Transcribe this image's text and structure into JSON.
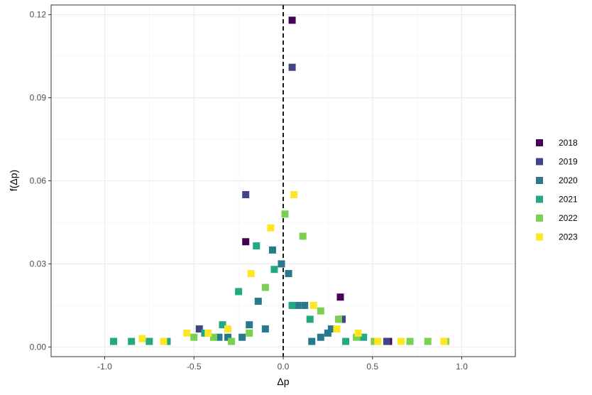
{
  "chart_data": {
    "type": "scatter",
    "xlabel": "Δp",
    "ylabel": "f(Δp)",
    "xlim": [
      -1.3,
      1.3
    ],
    "ylim": [
      -0.0035,
      0.1235
    ],
    "x_ticks": [
      -1.0,
      -0.5,
      0.0,
      0.5,
      1.0
    ],
    "x_tick_labels": [
      "-1.0",
      "-0.5",
      "0.0",
      "0.5",
      "1.0"
    ],
    "y_ticks": [
      0.0,
      0.03,
      0.06,
      0.09,
      0.12
    ],
    "y_tick_labels": [
      "0.00",
      "0.03",
      "0.06",
      "0.09",
      "0.12"
    ],
    "grid": true,
    "legend_position": "right",
    "reference_line": {
      "x": 0,
      "style": "dashed"
    },
    "series": [
      {
        "name": "2018",
        "color": "#440154",
        "points": [
          [
            0.05,
            0.118
          ],
          [
            -0.21,
            0.038
          ],
          [
            0.32,
            0.018
          ],
          [
            0.33,
            0.01
          ],
          [
            0.59,
            0.002
          ]
        ]
      },
      {
        "name": "2019",
        "color": "#414487",
        "points": [
          [
            0.05,
            0.101
          ],
          [
            -0.21,
            0.055
          ],
          [
            -0.47,
            0.0065
          ],
          [
            0.58,
            0.002
          ],
          [
            0.33,
            0.01
          ]
        ]
      },
      {
        "name": "2020",
        "color": "#2a788e",
        "points": [
          [
            -0.06,
            0.035
          ],
          [
            -0.01,
            0.03
          ],
          [
            0.03,
            0.0265
          ],
          [
            -0.14,
            0.0165
          ],
          [
            -0.19,
            0.008
          ],
          [
            -0.1,
            0.0065
          ],
          [
            -0.23,
            0.0035
          ],
          [
            -0.31,
            0.0035
          ],
          [
            -0.36,
            0.0035
          ],
          [
            0.08,
            0.015
          ],
          [
            0.12,
            0.015
          ],
          [
            0.27,
            0.0065
          ],
          [
            0.21,
            0.0035
          ],
          [
            0.16,
            0.002
          ],
          [
            0.25,
            0.005
          ]
        ]
      },
      {
        "name": "2021",
        "color": "#22a884",
        "points": [
          [
            -0.15,
            0.0365
          ],
          [
            -0.05,
            0.028
          ],
          [
            -0.25,
            0.02
          ],
          [
            -0.34,
            0.008
          ],
          [
            -0.44,
            0.005
          ],
          [
            -0.95,
            0.002
          ],
          [
            -0.85,
            0.002
          ],
          [
            -0.75,
            0.002
          ],
          [
            -0.65,
            0.002
          ],
          [
            0.05,
            0.015
          ],
          [
            0.15,
            0.01
          ],
          [
            0.35,
            0.002
          ],
          [
            0.45,
            0.0035
          ]
        ]
      },
      {
        "name": "2022",
        "color": "#7ad151",
        "points": [
          [
            0.01,
            0.048
          ],
          [
            0.11,
            0.04
          ],
          [
            -0.1,
            0.0215
          ],
          [
            0.21,
            0.013
          ],
          [
            0.31,
            0.01
          ],
          [
            -0.19,
            0.005
          ],
          [
            -0.39,
            0.0035
          ],
          [
            -0.5,
            0.0035
          ],
          [
            -0.29,
            0.002
          ],
          [
            0.41,
            0.0035
          ],
          [
            0.51,
            0.002
          ],
          [
            0.71,
            0.002
          ],
          [
            0.81,
            0.002
          ],
          [
            0.91,
            0.002
          ]
        ]
      },
      {
        "name": "2023",
        "color": "#fde725",
        "points": [
          [
            0.06,
            0.055
          ],
          [
            -0.07,
            0.043
          ],
          [
            -0.18,
            0.0265
          ],
          [
            0.17,
            0.015
          ],
          [
            0.3,
            0.0065
          ],
          [
            -0.31,
            0.0065
          ],
          [
            -0.42,
            0.005
          ],
          [
            -0.54,
            0.005
          ],
          [
            -0.79,
            0.003
          ],
          [
            -0.67,
            0.002
          ],
          [
            0.42,
            0.005
          ],
          [
            0.53,
            0.002
          ],
          [
            0.66,
            0.002
          ],
          [
            0.9,
            0.002
          ]
        ]
      }
    ]
  }
}
